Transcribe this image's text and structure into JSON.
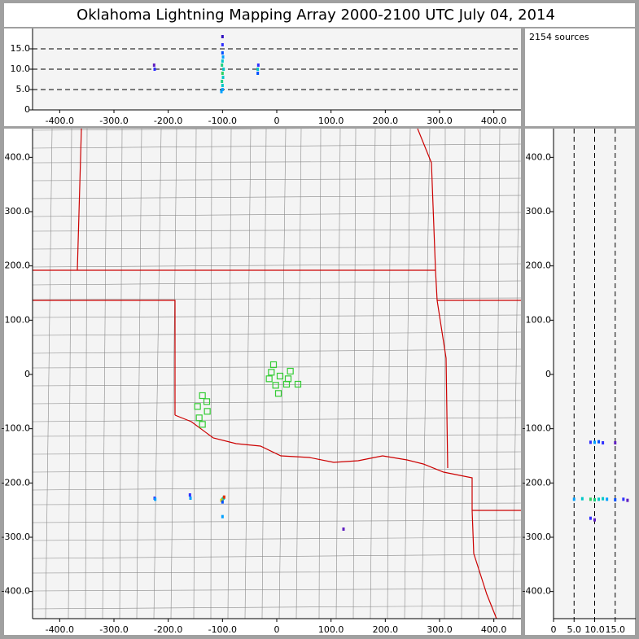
{
  "title": "Oklahoma Lightning Mapping Array   2000-2100 UTC  July 04, 2014",
  "annotation": "2154 sources",
  "chart_data": [
    {
      "type": "scatter",
      "panel": "top",
      "xlim": [
        -450,
        450
      ],
      "ylim": [
        0,
        20
      ],
      "grid": "y",
      "xticks": [
        {
          "value": -400,
          "label": "-400.0"
        },
        {
          "value": -300,
          "label": "-300.0"
        },
        {
          "value": -200,
          "label": "-200.0"
        },
        {
          "value": -100,
          "label": "-100.0"
        },
        0,
        {
          "value": 100,
          "label": "100.0"
        },
        {
          "value": 200,
          "label": "200.0"
        },
        {
          "value": 300,
          "label": "300.0"
        },
        {
          "value": 400,
          "label": "400.0"
        }
      ],
      "yticks": [
        0,
        {
          "value": 5,
          "label": "5.0"
        },
        {
          "value": 10,
          "label": "10.0"
        },
        {
          "value": 15,
          "label": "15.0"
        }
      ],
      "x": [
        -100,
        -100,
        -101,
        -99,
        -100,
        -98,
        -101,
        -100,
        -99,
        -100,
        -100,
        -100,
        -102,
        -35,
        -35,
        -34,
        -225,
        -226
      ],
      "values": [
        5,
        6,
        7,
        8,
        9,
        10,
        11,
        12,
        13,
        14,
        16,
        18,
        4.5,
        9,
        10,
        11,
        10,
        11
      ],
      "colors": [
        "#00a0ff",
        "#00c8c8",
        "#20d080",
        "#00c8c8",
        "#30d060",
        "#00c8c8",
        "#20d080",
        "#00c8c8",
        "#00a0ff",
        "#0050ff",
        "#3030ff",
        "#3010c0",
        "#00a0ff",
        "#0050ff",
        "#00c8c8",
        "#3030ff",
        "#3030ff",
        "#6020c0"
      ]
    },
    {
      "type": "scatter",
      "panel": "map",
      "xlim": [
        -450,
        450
      ],
      "ylim": [
        -450,
        453
      ],
      "grid": false,
      "xticks": [
        {
          "value": -400,
          "label": "-400.0"
        },
        {
          "value": -300,
          "label": "-300.0"
        },
        {
          "value": -200,
          "label": "-200.0"
        },
        {
          "value": -100,
          "label": "-100.0"
        },
        0,
        {
          "value": 100,
          "label": "100.0"
        },
        {
          "value": 200,
          "label": "200.0"
        },
        {
          "value": 300,
          "label": "300.0"
        },
        {
          "value": 400,
          "label": "400.0"
        }
      ],
      "yticks": [
        {
          "value": 400,
          "label": "400.0"
        },
        {
          "value": 300,
          "label": "300.0"
        },
        {
          "value": 200,
          "label": "200.0"
        },
        {
          "value": 100,
          "label": "100.0"
        },
        0,
        {
          "value": -100,
          "label": "-100.0"
        },
        {
          "value": -200,
          "label": "-200.0"
        },
        {
          "value": -300,
          "label": "-300.0"
        },
        {
          "value": -400,
          "label": "-400.0"
        }
      ],
      "x": [
        -100,
        -98,
        -102,
        -97,
        -100,
        -100,
        -225,
        -224,
        -160,
        -159,
        123
      ],
      "values": [
        -230,
        -228,
        -232,
        -226,
        -235,
        -262,
        -228,
        -230,
        -222,
        -228,
        -285
      ],
      "colors": [
        "#30d060",
        "#00c8c8",
        "#e0c000",
        "#e03000",
        "#0050ff",
        "#00a0ff",
        "#3030ff",
        "#00a0ff",
        "#3030ff",
        "#00a0ff",
        "#6020c0"
      ],
      "stations": {
        "x": [
          -6,
          -10,
          6,
          -14,
          25,
          21,
          -2,
          18,
          39,
          3,
          -137,
          -129,
          -146,
          -128,
          -143,
          -137
        ],
        "values": [
          18,
          4,
          -3,
          -8,
          6,
          -8,
          -20,
          -18,
          -18,
          -35,
          -39,
          -50,
          -59,
          -68,
          -80,
          -92
        ],
        "color": "#33cc33"
      }
    },
    {
      "type": "scatter",
      "panel": "right",
      "xlim": [
        0,
        20
      ],
      "ylim": [
        -450,
        453
      ],
      "grid": "x",
      "xticks": [
        0,
        {
          "value": 5,
          "label": "5.0"
        },
        {
          "value": 10,
          "label": "10.0"
        },
        {
          "value": 15,
          "label": "15.0"
        }
      ],
      "yticks": [
        {
          "value": 400,
          "label": "400.0"
        },
        {
          "value": 300,
          "label": "300.0"
        },
        {
          "value": 200,
          "label": "200.0"
        },
        {
          "value": 100,
          "label": "100.0"
        },
        0,
        {
          "value": -100,
          "label": "-100.0"
        },
        {
          "value": -200,
          "label": "-200.0"
        },
        {
          "value": -300,
          "label": "-300.0"
        },
        {
          "value": -400,
          "label": "-400.0"
        }
      ],
      "x": [
        5,
        7,
        9,
        10,
        11,
        12,
        13,
        15,
        17,
        18,
        9,
        10,
        11,
        12,
        15,
        9,
        10
      ],
      "values": [
        -230,
        -229,
        -230,
        -231,
        -230,
        -229,
        -230,
        -231,
        -230,
        -232,
        -125,
        -125,
        -124,
        -126,
        -126,
        -265,
        -268
      ],
      "colors": [
        "#00a0ff",
        "#00c8c8",
        "#30d060",
        "#20d080",
        "#00c8c8",
        "#00c8c8",
        "#00a0ff",
        "#0050ff",
        "#3030ff",
        "#6020c0",
        "#3030ff",
        "#00a0ff",
        "#0050ff",
        "#3030ff",
        "#6020c0",
        "#3030ff",
        "#6020c0"
      ]
    }
  ]
}
